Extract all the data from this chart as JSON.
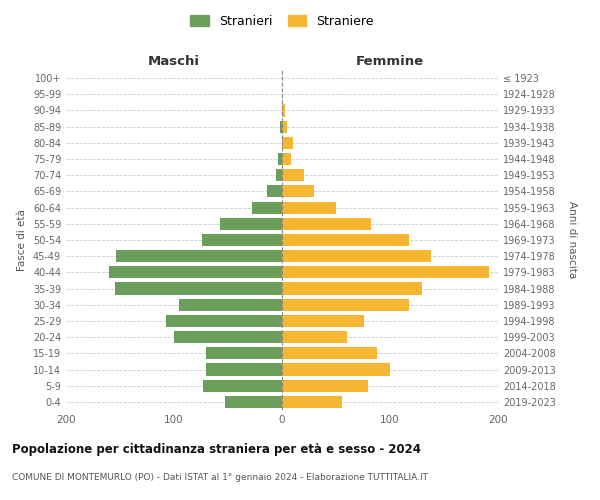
{
  "age_groups": [
    "0-4",
    "5-9",
    "10-14",
    "15-19",
    "20-24",
    "25-29",
    "30-34",
    "35-39",
    "40-44",
    "45-49",
    "50-54",
    "55-59",
    "60-64",
    "65-69",
    "70-74",
    "75-79",
    "80-84",
    "85-89",
    "90-94",
    "95-99",
    "100+"
  ],
  "birth_years": [
    "2019-2023",
    "2014-2018",
    "2009-2013",
    "2004-2008",
    "1999-2003",
    "1994-1998",
    "1989-1993",
    "1984-1988",
    "1979-1983",
    "1974-1978",
    "1969-1973",
    "1964-1968",
    "1959-1963",
    "1954-1958",
    "1949-1953",
    "1944-1948",
    "1939-1943",
    "1934-1938",
    "1929-1933",
    "1924-1928",
    "≤ 1923"
  ],
  "maschi": [
    53,
    73,
    70,
    70,
    100,
    107,
    95,
    155,
    160,
    154,
    74,
    57,
    28,
    14,
    6,
    4,
    0,
    2,
    0,
    0,
    0
  ],
  "femmine": [
    56,
    80,
    100,
    88,
    60,
    76,
    118,
    130,
    192,
    138,
    118,
    82,
    50,
    30,
    20,
    8,
    10,
    5,
    3,
    0,
    0
  ],
  "color_maschi": "#6a9e5a",
  "color_femmine": "#f5b731",
  "title": "Popolazione per cittadinanza straniera per età e sesso - 2024",
  "subtitle": "COMUNE DI MONTEMURLO (PO) - Dati ISTAT al 1° gennaio 2024 - Elaborazione TUTTITALIA.IT",
  "ylabel_left": "Fasce di età",
  "ylabel_right": "Anni di nascita",
  "header_left": "Maschi",
  "header_right": "Femmine",
  "legend_maschi": "Stranieri",
  "legend_femmine": "Straniere",
  "xlim": 200,
  "background_color": "#ffffff",
  "grid_color": "#cccccc"
}
